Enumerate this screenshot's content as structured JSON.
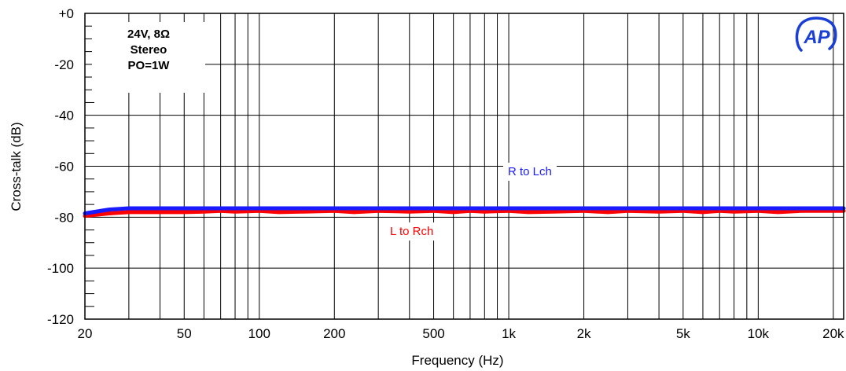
{
  "chart_data": {
    "type": "line",
    "title": "",
    "xlabel": "Frequency (Hz)",
    "ylabel": "Cross-talk (dB)",
    "xscale": "log",
    "xlim": [
      20,
      22000
    ],
    "ylim": [
      -120,
      0
    ],
    "grid": true,
    "xticks": [
      20,
      50,
      100,
      200,
      500,
      1000,
      2000,
      5000,
      10000,
      20000
    ],
    "xtick_labels": [
      "20",
      "50",
      "100",
      "200",
      "500",
      "1k",
      "2k",
      "5k",
      "10k",
      "20k"
    ],
    "yticks": [
      0,
      -20,
      -40,
      -60,
      -80,
      -100,
      -120
    ],
    "ytick_labels": [
      "+0",
      "-20",
      "-40",
      "-60",
      "-80",
      "-100",
      "-120"
    ],
    "conditions": [
      "24V, 8Ω",
      "Stereo",
      "PO=1W"
    ],
    "series": [
      {
        "name": "R to Lch",
        "color": "#1a1aff",
        "x": [
          20,
          25,
          30,
          40,
          50,
          100,
          200,
          500,
          1000,
          2000,
          5000,
          10000,
          20000,
          22000
        ],
        "y": [
          -78.5,
          -77,
          -76.5,
          -76.5,
          -76.5,
          -76.5,
          -76.5,
          -76.5,
          -76.5,
          -76.5,
          -76.5,
          -76.5,
          -76.5,
          -76.5
        ]
      },
      {
        "name": "L to Rch",
        "color": "#ff0000",
        "x": [
          20,
          25,
          30,
          40,
          50,
          60,
          70,
          80,
          100,
          120,
          150,
          200,
          240,
          300,
          400,
          500,
          600,
          700,
          800,
          1000,
          1200,
          1500,
          2000,
          2500,
          3000,
          4000,
          5000,
          6000,
          7000,
          8000,
          10000,
          12000,
          15000,
          20000,
          22000
        ],
        "y": [
          -79.5,
          -78.5,
          -78,
          -78,
          -78,
          -77.8,
          -77.5,
          -77.8,
          -77.5,
          -78,
          -77.8,
          -77.5,
          -78,
          -77.5,
          -77.8,
          -77.5,
          -78,
          -77.5,
          -77.8,
          -77.5,
          -78,
          -77.8,
          -77.5,
          -78,
          -77.5,
          -77.8,
          -77.5,
          -78,
          -77.5,
          -77.8,
          -77.5,
          -78,
          -77.5,
          -77.5,
          -77.5
        ]
      }
    ]
  },
  "logo": {
    "text": "AP"
  }
}
